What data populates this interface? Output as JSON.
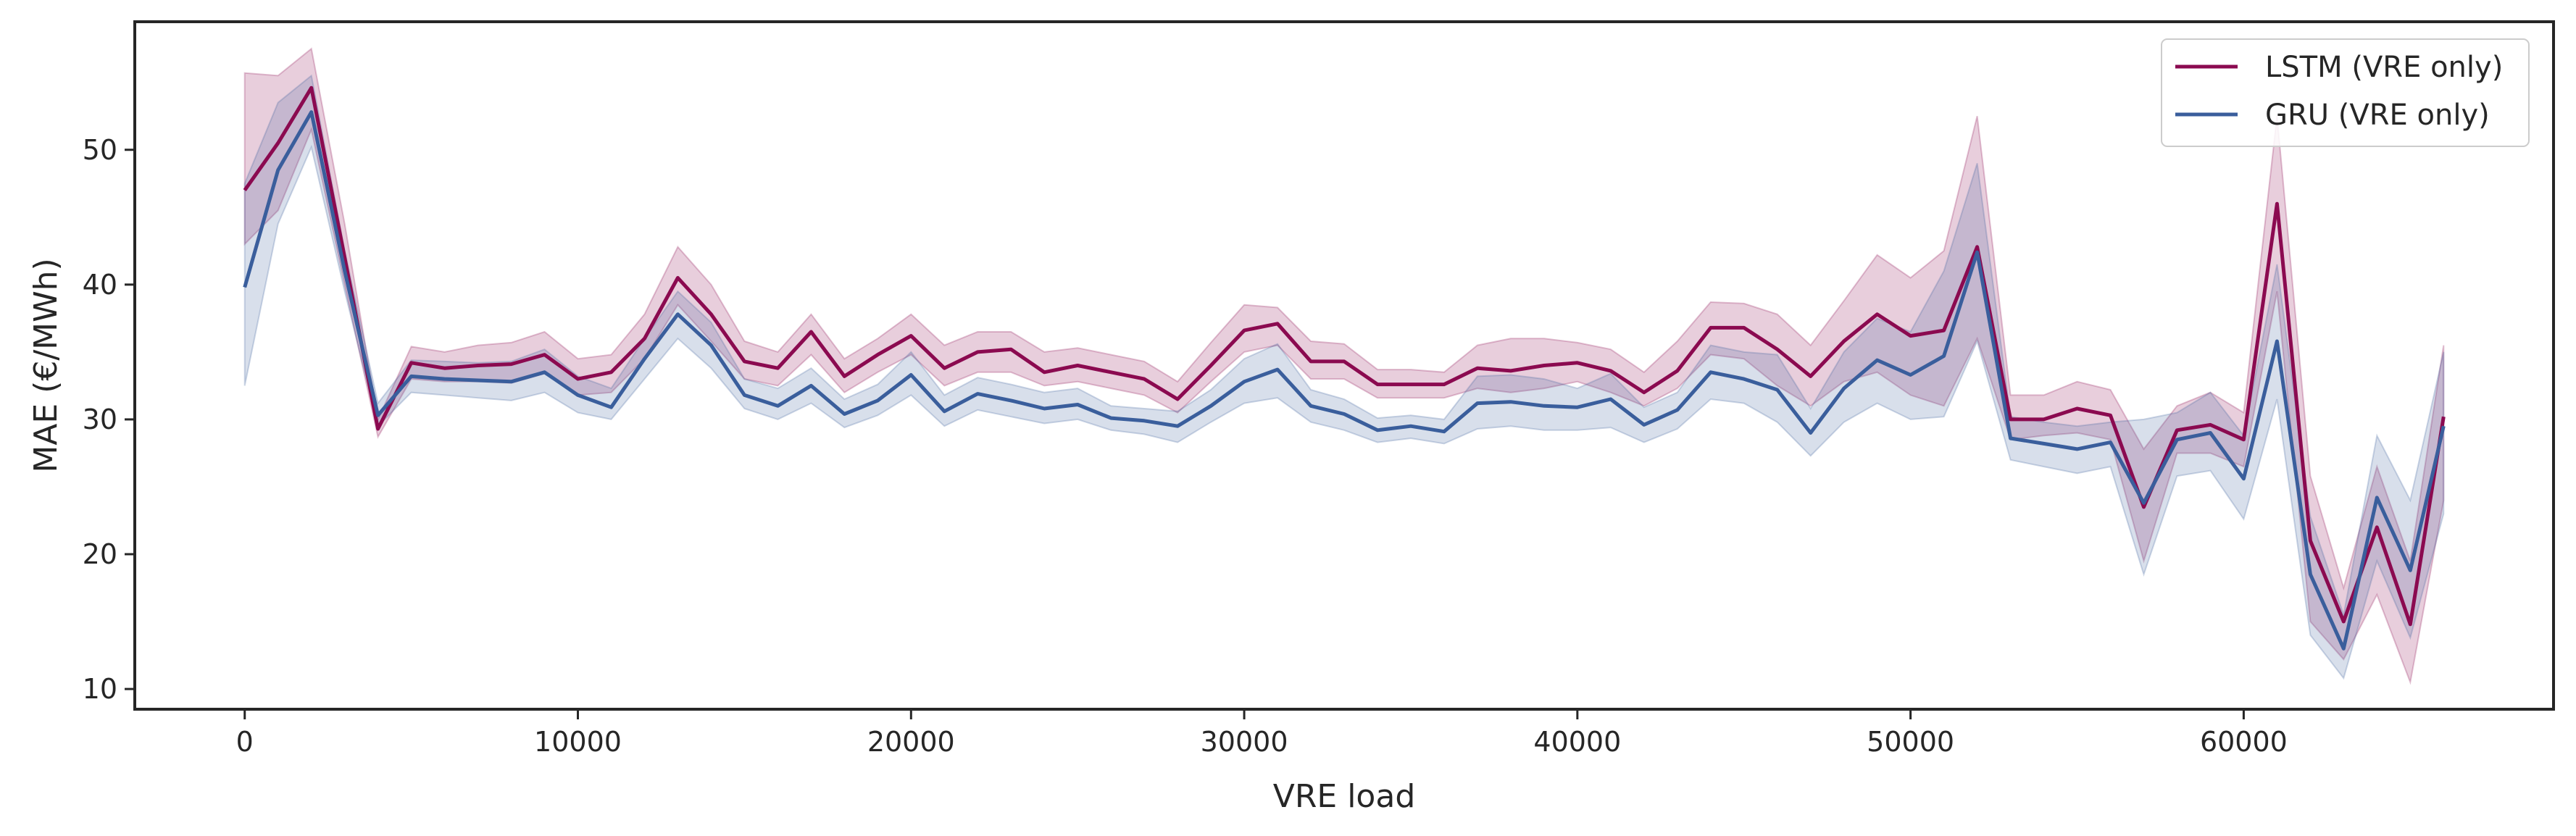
{
  "chart_data": {
    "type": "line",
    "xlabel": "VRE load",
    "ylabel": "MAE (€/MWh)",
    "xlim": [
      -3300,
      69300
    ],
    "ylim": [
      8.5,
      59.5
    ],
    "xticks": [
      0,
      10000,
      20000,
      30000,
      40000,
      50000,
      60000
    ],
    "yticks": [
      10,
      20,
      30,
      40,
      50
    ],
    "grid": false,
    "legend": "top-right",
    "x": [
      0,
      1000,
      2000,
      3000,
      4000,
      5000,
      6000,
      7000,
      8000,
      9000,
      10000,
      11000,
      12000,
      13000,
      14000,
      15000,
      16000,
      17000,
      18000,
      19000,
      20000,
      21000,
      22000,
      23000,
      24000,
      25000,
      26000,
      27000,
      28000,
      29000,
      30000,
      31000,
      32000,
      33000,
      34000,
      35000,
      36000,
      37000,
      38000,
      39000,
      40000,
      41000,
      42000,
      43000,
      44000,
      45000,
      46000,
      47000,
      48000,
      49000,
      50000,
      51000,
      52000,
      53000,
      54000,
      55000,
      56000,
      57000,
      58000,
      59000,
      60000,
      61000,
      62000,
      63000,
      64000,
      65000,
      66000
    ],
    "series": [
      {
        "name": "LSTM (VRE only)",
        "color": "#8b0a50",
        "values": [
          47.0,
          50.5,
          54.6,
          42.0,
          29.3,
          34.2,
          33.8,
          34.0,
          34.1,
          34.8,
          33.0,
          33.5,
          36.0,
          40.5,
          37.8,
          34.3,
          33.8,
          36.5,
          33.2,
          34.8,
          36.2,
          33.8,
          35.0,
          35.2,
          33.5,
          34.0,
          33.5,
          33.0,
          31.5,
          34.0,
          36.6,
          37.1,
          34.3,
          34.3,
          32.6,
          32.6,
          32.6,
          33.8,
          33.6,
          34.0,
          34.2,
          33.6,
          32.0,
          33.6,
          36.8,
          36.8,
          35.2,
          33.2,
          35.8,
          37.8,
          36.2,
          36.6,
          42.8,
          30.0,
          30.0,
          30.8,
          30.3,
          23.5,
          29.2,
          29.6,
          28.5,
          46.0,
          21.0,
          15.0,
          22.0,
          14.8,
          30.2
        ],
        "lower": [
          43.0,
          45.5,
          51.5,
          40.0,
          28.7,
          33.0,
          32.8,
          32.8,
          32.7,
          33.4,
          31.8,
          32.0,
          34.5,
          38.5,
          35.8,
          33.0,
          32.5,
          34.8,
          32.0,
          33.5,
          34.8,
          32.5,
          33.5,
          33.5,
          32.5,
          32.8,
          32.3,
          31.8,
          30.5,
          32.8,
          35.0,
          35.5,
          33.0,
          33.0,
          31.6,
          31.6,
          31.6,
          32.3,
          32.0,
          32.3,
          32.8,
          32.0,
          31.0,
          32.3,
          34.8,
          34.5,
          32.5,
          31.0,
          32.8,
          33.5,
          31.8,
          31.0,
          36.0,
          28.5,
          28.8,
          29.0,
          28.5,
          19.5,
          27.5,
          27.5,
          26.5,
          39.5,
          15.0,
          12.2,
          17.0,
          10.5,
          24.0
        ],
        "upper": [
          55.7,
          55.5,
          57.5,
          44.5,
          30.0,
          35.4,
          35.0,
          35.5,
          35.7,
          36.5,
          34.5,
          34.8,
          37.8,
          42.8,
          40.0,
          35.8,
          35.0,
          37.8,
          34.5,
          36.0,
          37.8,
          35.5,
          36.5,
          36.5,
          35.0,
          35.3,
          34.8,
          34.3,
          32.8,
          35.7,
          38.5,
          38.3,
          35.8,
          35.6,
          33.7,
          33.7,
          33.5,
          35.5,
          36.0,
          36.0,
          35.7,
          35.2,
          33.5,
          35.8,
          38.7,
          38.6,
          37.8,
          35.5,
          38.8,
          42.2,
          40.5,
          42.5,
          52.5,
          31.8,
          31.8,
          32.8,
          32.2,
          27.8,
          31.0,
          32.0,
          30.5,
          52.5,
          25.8,
          17.5,
          26.5,
          19.5,
          35.5
        ]
      },
      {
        "name": "GRU (VRE only)",
        "color": "#3a5e9c",
        "values": [
          39.8,
          48.5,
          52.8,
          41.0,
          30.3,
          33.2,
          33.0,
          32.9,
          32.8,
          33.5,
          31.8,
          30.9,
          34.5,
          37.8,
          35.5,
          31.8,
          31.0,
          32.5,
          30.4,
          31.4,
          33.3,
          30.6,
          31.9,
          31.4,
          30.8,
          31.1,
          30.1,
          29.9,
          29.5,
          31.0,
          32.8,
          33.7,
          31.0,
          30.4,
          29.2,
          29.5,
          29.1,
          31.2,
          31.3,
          31.0,
          30.9,
          31.5,
          29.6,
          30.7,
          33.5,
          33.0,
          32.2,
          29.0,
          32.3,
          34.4,
          33.3,
          34.7,
          42.4,
          28.6,
          28.2,
          27.8,
          28.3,
          23.8,
          28.5,
          29.0,
          25.6,
          35.8,
          18.5,
          13.0,
          24.2,
          18.8,
          29.5
        ],
        "lower": [
          32.5,
          44.5,
          50.2,
          39.5,
          29.5,
          32.0,
          31.8,
          31.6,
          31.4,
          32.0,
          30.5,
          30.0,
          33.0,
          36.0,
          33.8,
          30.8,
          30.0,
          31.2,
          29.4,
          30.3,
          31.8,
          29.5,
          30.7,
          30.2,
          29.7,
          30.0,
          29.2,
          28.9,
          28.3,
          29.8,
          31.2,
          31.6,
          29.8,
          29.2,
          28.3,
          28.6,
          28.2,
          29.3,
          29.5,
          29.2,
          29.2,
          29.4,
          28.3,
          29.3,
          31.5,
          31.2,
          29.8,
          27.3,
          29.8,
          31.2,
          30.0,
          30.2,
          35.8,
          27.0,
          26.5,
          26.0,
          26.5,
          18.5,
          25.8,
          26.2,
          22.6,
          31.5,
          14.0,
          10.8,
          19.5,
          13.8,
          23.0
        ],
        "upper": [
          47.5,
          53.5,
          55.5,
          42.5,
          31.2,
          34.4,
          34.3,
          34.2,
          34.3,
          35.2,
          33.2,
          32.3,
          36.0,
          39.5,
          37.2,
          33.0,
          32.3,
          33.8,
          31.5,
          32.6,
          35.0,
          31.8,
          33.1,
          32.6,
          32.0,
          32.3,
          31.0,
          30.8,
          30.6,
          32.2,
          34.5,
          35.6,
          32.2,
          31.5,
          30.1,
          30.3,
          30.0,
          33.2,
          33.3,
          33.0,
          32.3,
          33.4,
          30.9,
          32.0,
          35.5,
          35.0,
          34.8,
          30.8,
          35.0,
          37.5,
          36.5,
          41.0,
          49.0,
          30.2,
          29.8,
          29.5,
          29.8,
          30.0,
          30.5,
          32.0,
          28.8,
          41.5,
          22.8,
          15.5,
          28.8,
          24.0,
          35.0
        ]
      }
    ]
  }
}
